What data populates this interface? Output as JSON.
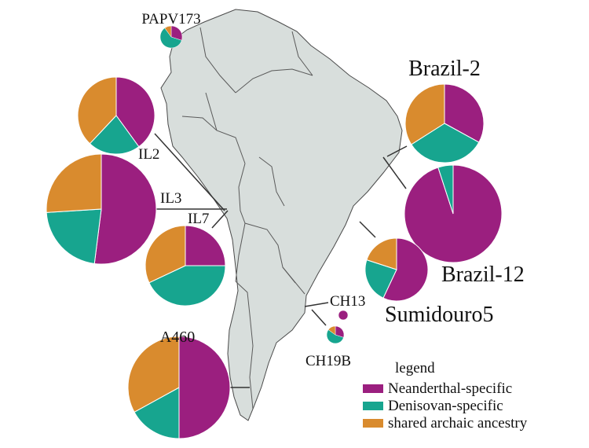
{
  "colors": {
    "neanderthal": "#9b1f7f",
    "denisovan": "#17a58f",
    "shared": "#d98b2e",
    "land": "#d8dedc",
    "border": "#4a4a4a"
  },
  "legend": {
    "title": "legend",
    "items": [
      {
        "label": "Neanderthal-specific",
        "color": "#9b1f7f"
      },
      {
        "label": "Denisovan-specific",
        "color": "#17a58f"
      },
      {
        "label": "shared archaic ancestry",
        "color": "#d98b2e"
      }
    ]
  },
  "samples": [
    {
      "id": "papv173",
      "label": "PAPV173",
      "slices": [
        0.3,
        0.6,
        0.1
      ]
    },
    {
      "id": "il2",
      "label": "IL2",
      "slices": [
        0.4,
        0.22,
        0.38
      ]
    },
    {
      "id": "il3",
      "label": "IL3",
      "slices": [
        0.52,
        0.22,
        0.26
      ]
    },
    {
      "id": "il7",
      "label": "IL7",
      "slices": [
        0.25,
        0.43,
        0.32
      ]
    },
    {
      "id": "a460",
      "label": "A460",
      "slices": [
        0.5,
        0.17,
        0.33
      ]
    },
    {
      "id": "brazil2",
      "label": "Brazil-2",
      "slices": [
        0.33,
        0.33,
        0.34
      ]
    },
    {
      "id": "brazil12",
      "label": "Brazil-12",
      "slices": [
        0.95,
        0.05,
        0.0
      ]
    },
    {
      "id": "sumidouro5",
      "label": "Sumidouro5",
      "slices": [
        0.57,
        0.23,
        0.2
      ]
    },
    {
      "id": "ch13",
      "label": "CH13",
      "slices": [
        1.0,
        0.0,
        0.0
      ]
    },
    {
      "id": "ch19b",
      "label": "CH19B",
      "slices": [
        0.3,
        0.55,
        0.15
      ]
    }
  ]
}
